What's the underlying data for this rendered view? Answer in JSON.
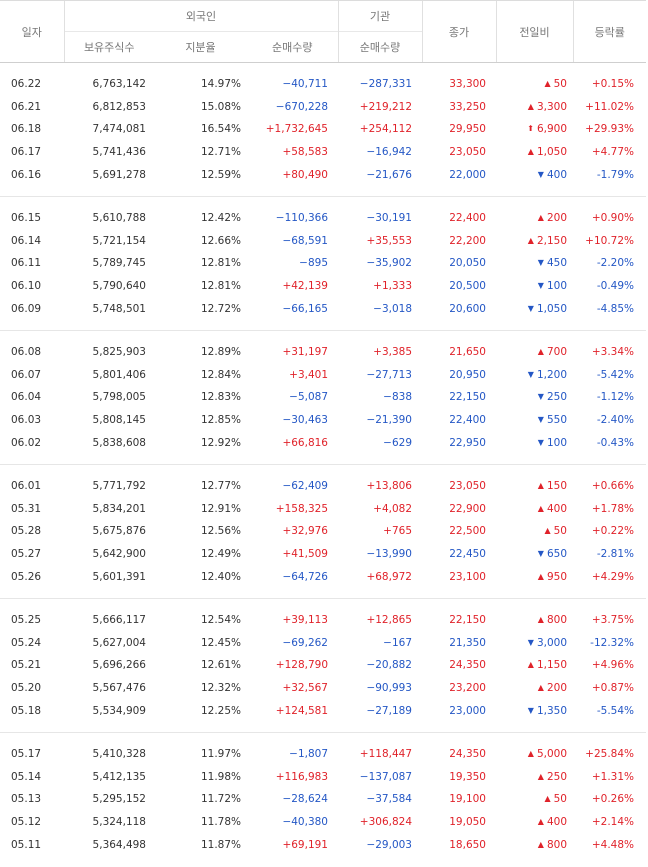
{
  "header": {
    "date": "일자",
    "foreign": "외국인",
    "institution": "기관",
    "holdings": "보유주식수",
    "ratio": "지분율",
    "foreign_net": "순매수량",
    "institution_net": "순매수량",
    "close": "종가",
    "change": "전일비",
    "rate": "등락률"
  },
  "colors": {
    "up": "#e0222a",
    "down": "#2457c5"
  },
  "groups": [
    [
      {
        "date": "06.22",
        "holdings": "6,763,142",
        "ratio": "14.97%",
        "foreign": "−40,711",
        "institution": "−287,331",
        "close": "33,300",
        "change": "50",
        "change_dir": "up",
        "rate": "+0.15%"
      },
      {
        "date": "06.21",
        "holdings": "6,812,853",
        "ratio": "15.08%",
        "foreign": "−670,228",
        "institution": "+219,212",
        "close": "33,250",
        "change": "3,300",
        "change_dir": "up",
        "rate": "+11.02%"
      },
      {
        "date": "06.18",
        "holdings": "7,474,081",
        "ratio": "16.54%",
        "foreign": "+1,732,645",
        "institution": "+254,112",
        "close": "29,950",
        "change": "6,900",
        "change_dir": "upper",
        "rate": "+29.93%"
      },
      {
        "date": "06.17",
        "holdings": "5,741,436",
        "ratio": "12.71%",
        "foreign": "+58,583",
        "institution": "−16,942",
        "close": "23,050",
        "change": "1,050",
        "change_dir": "up",
        "rate": "+4.77%"
      },
      {
        "date": "06.16",
        "holdings": "5,691,278",
        "ratio": "12.59%",
        "foreign": "+80,490",
        "institution": "−21,676",
        "close": "22,000",
        "change": "400",
        "change_dir": "down",
        "rate": "-1.79%"
      }
    ],
    [
      {
        "date": "06.15",
        "holdings": "5,610,788",
        "ratio": "12.42%",
        "foreign": "−110,366",
        "institution": "−30,191",
        "close": "22,400",
        "change": "200",
        "change_dir": "up",
        "rate": "+0.90%"
      },
      {
        "date": "06.14",
        "holdings": "5,721,154",
        "ratio": "12.66%",
        "foreign": "−68,591",
        "institution": "+35,553",
        "close": "22,200",
        "change": "2,150",
        "change_dir": "up",
        "rate": "+10.72%"
      },
      {
        "date": "06.11",
        "holdings": "5,789,745",
        "ratio": "12.81%",
        "foreign": "−895",
        "institution": "−35,902",
        "close": "20,050",
        "change": "450",
        "change_dir": "down",
        "rate": "-2.20%"
      },
      {
        "date": "06.10",
        "holdings": "5,790,640",
        "ratio": "12.81%",
        "foreign": "+42,139",
        "institution": "+1,333",
        "close": "20,500",
        "change": "100",
        "change_dir": "down",
        "rate": "-0.49%"
      },
      {
        "date": "06.09",
        "holdings": "5,748,501",
        "ratio": "12.72%",
        "foreign": "−66,165",
        "institution": "−3,018",
        "close": "20,600",
        "change": "1,050",
        "change_dir": "down",
        "rate": "-4.85%"
      }
    ],
    [
      {
        "date": "06.08",
        "holdings": "5,825,903",
        "ratio": "12.89%",
        "foreign": "+31,197",
        "institution": "+3,385",
        "close": "21,650",
        "change": "700",
        "change_dir": "up",
        "rate": "+3.34%"
      },
      {
        "date": "06.07",
        "holdings": "5,801,406",
        "ratio": "12.84%",
        "foreign": "+3,401",
        "institution": "−27,713",
        "close": "20,950",
        "change": "1,200",
        "change_dir": "down",
        "rate": "-5.42%"
      },
      {
        "date": "06.04",
        "holdings": "5,798,005",
        "ratio": "12.83%",
        "foreign": "−5,087",
        "institution": "−838",
        "close": "22,150",
        "change": "250",
        "change_dir": "down",
        "rate": "-1.12%"
      },
      {
        "date": "06.03",
        "holdings": "5,808,145",
        "ratio": "12.85%",
        "foreign": "−30,463",
        "institution": "−21,390",
        "close": "22,400",
        "change": "550",
        "change_dir": "down",
        "rate": "-2.40%"
      },
      {
        "date": "06.02",
        "holdings": "5,838,608",
        "ratio": "12.92%",
        "foreign": "+66,816",
        "institution": "−629",
        "close": "22,950",
        "change": "100",
        "change_dir": "down",
        "rate": "-0.43%"
      }
    ],
    [
      {
        "date": "06.01",
        "holdings": "5,771,792",
        "ratio": "12.77%",
        "foreign": "−62,409",
        "institution": "+13,806",
        "close": "23,050",
        "change": "150",
        "change_dir": "up",
        "rate": "+0.66%"
      },
      {
        "date": "05.31",
        "holdings": "5,834,201",
        "ratio": "12.91%",
        "foreign": "+158,325",
        "institution": "+4,082",
        "close": "22,900",
        "change": "400",
        "change_dir": "up",
        "rate": "+1.78%"
      },
      {
        "date": "05.28",
        "holdings": "5,675,876",
        "ratio": "12.56%",
        "foreign": "+32,976",
        "institution": "+765",
        "close": "22,500",
        "change": "50",
        "change_dir": "up",
        "rate": "+0.22%"
      },
      {
        "date": "05.27",
        "holdings": "5,642,900",
        "ratio": "12.49%",
        "foreign": "+41,509",
        "institution": "−13,990",
        "close": "22,450",
        "change": "650",
        "change_dir": "down",
        "rate": "-2.81%"
      },
      {
        "date": "05.26",
        "holdings": "5,601,391",
        "ratio": "12.40%",
        "foreign": "−64,726",
        "institution": "+68,972",
        "close": "23,100",
        "change": "950",
        "change_dir": "up",
        "rate": "+4.29%"
      }
    ],
    [
      {
        "date": "05.25",
        "holdings": "5,666,117",
        "ratio": "12.54%",
        "foreign": "+39,113",
        "institution": "+12,865",
        "close": "22,150",
        "change": "800",
        "change_dir": "up",
        "rate": "+3.75%"
      },
      {
        "date": "05.24",
        "holdings": "5,627,004",
        "ratio": "12.45%",
        "foreign": "−69,262",
        "institution": "−167",
        "close": "21,350",
        "change": "3,000",
        "change_dir": "down",
        "rate": "-12.32%"
      },
      {
        "date": "05.21",
        "holdings": "5,696,266",
        "ratio": "12.61%",
        "foreign": "+128,790",
        "institution": "−20,882",
        "close": "24,350",
        "change": "1,150",
        "change_dir": "up",
        "rate": "+4.96%"
      },
      {
        "date": "05.20",
        "holdings": "5,567,476",
        "ratio": "12.32%",
        "foreign": "+32,567",
        "institution": "−90,993",
        "close": "23,200",
        "change": "200",
        "change_dir": "up",
        "rate": "+0.87%"
      },
      {
        "date": "05.18",
        "holdings": "5,534,909",
        "ratio": "12.25%",
        "foreign": "+124,581",
        "institution": "−27,189",
        "close": "23,000",
        "change": "1,350",
        "change_dir": "down",
        "rate": "-5.54%"
      }
    ],
    [
      {
        "date": "05.17",
        "holdings": "5,410,328",
        "ratio": "11.97%",
        "foreign": "−1,807",
        "institution": "+118,447",
        "close": "24,350",
        "change": "5,000",
        "change_dir": "up",
        "rate": "+25.84%"
      },
      {
        "date": "05.14",
        "holdings": "5,412,135",
        "ratio": "11.98%",
        "foreign": "+116,983",
        "institution": "−137,087",
        "close": "19,350",
        "change": "250",
        "change_dir": "up",
        "rate": "+1.31%"
      },
      {
        "date": "05.13",
        "holdings": "5,295,152",
        "ratio": "11.72%",
        "foreign": "−28,624",
        "institution": "−37,584",
        "close": "19,100",
        "change": "50",
        "change_dir": "up",
        "rate": "+0.26%"
      },
      {
        "date": "05.12",
        "holdings": "5,324,118",
        "ratio": "11.78%",
        "foreign": "−40,380",
        "institution": "+306,824",
        "close": "19,050",
        "change": "400",
        "change_dir": "up",
        "rate": "+2.14%"
      },
      {
        "date": "05.11",
        "holdings": "5,364,498",
        "ratio": "11.87%",
        "foreign": "+69,191",
        "institution": "−29,003",
        "close": "18,650",
        "change": "800",
        "change_dir": "up",
        "rate": "+4.48%"
      }
    ]
  ]
}
